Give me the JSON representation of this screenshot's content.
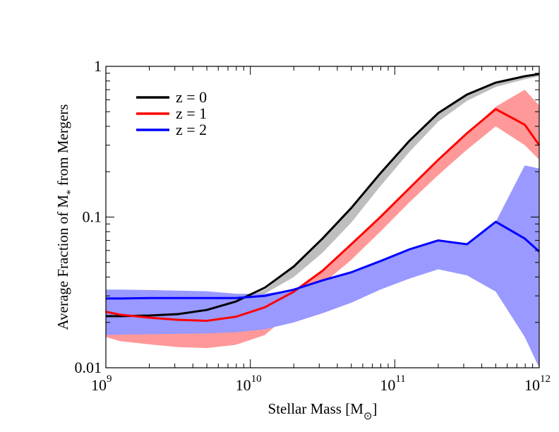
{
  "chart_data": {
    "type": "line",
    "xlabel": "Stellar Mass [M⊙]",
    "ylabel": "Average Fraction of M* from Mergers",
    "xscale": "log",
    "yscale": "log",
    "xlim": [
      1000000000.0,
      1000000000000.0
    ],
    "ylim": [
      0.01,
      1
    ],
    "x_ticks": [
      {
        "mant": "10",
        "exp": "9"
      },
      {
        "mant": "10",
        "exp": "10"
      },
      {
        "mant": "10",
        "exp": "11"
      },
      {
        "mant": "10",
        "exp": "12"
      }
    ],
    "y_ticks": [
      "0.01",
      "0.1",
      "1"
    ],
    "legend_placement": "top-left",
    "x": [
      1000000000.0,
      1260000000.0,
      2000000000.0,
      3160000000.0,
      5000000000.0,
      7940000000.0,
      12600000000.0,
      20000000000.0,
      31600000000.0,
      50000000000.0,
      79400000000.0,
      126000000000.0,
      200000000000.0,
      316000000000.0,
      500000000000.0,
      794000000000.0,
      1000000000000.0
    ],
    "series": [
      {
        "name": "z = 0",
        "color": "#000000",
        "band_color": "#bebebe",
        "values": [
          0.022,
          0.022,
          0.0222,
          0.0227,
          0.0242,
          0.0275,
          0.034,
          0.047,
          0.072,
          0.115,
          0.195,
          0.32,
          0.49,
          0.65,
          0.78,
          0.86,
          0.89
        ],
        "band_upper": [
          0.022,
          0.022,
          0.0222,
          0.0227,
          0.0242,
          0.0275,
          0.033,
          0.047,
          0.072,
          0.115,
          0.195,
          0.32,
          0.49,
          0.65,
          0.78,
          0.86,
          0.89
        ],
        "band_lower": [
          0.022,
          0.022,
          0.0222,
          0.0227,
          0.0242,
          0.0275,
          0.031,
          0.04,
          0.058,
          0.092,
          0.16,
          0.27,
          0.43,
          0.59,
          0.73,
          0.82,
          0.86
        ]
      },
      {
        "name": "z = 1",
        "color": "#ff0000",
        "band_color": "#ff9999",
        "values": [
          0.0235,
          0.0225,
          0.0215,
          0.0208,
          0.0205,
          0.0218,
          0.0252,
          0.032,
          0.044,
          0.066,
          0.1,
          0.155,
          0.24,
          0.36,
          0.52,
          0.41,
          0.3
        ],
        "band_upper": [
          0.0235,
          0.0225,
          0.0215,
          0.0208,
          0.0205,
          0.0218,
          0.0252,
          0.032,
          0.044,
          0.066,
          0.1,
          0.155,
          0.24,
          0.36,
          0.54,
          0.7,
          0.55
        ],
        "band_lower": [
          0.016,
          0.015,
          0.0143,
          0.0137,
          0.0135,
          0.0142,
          0.0165,
          0.024,
          0.036,
          0.052,
          0.08,
          0.125,
          0.19,
          0.28,
          0.4,
          0.3,
          0.24
        ]
      },
      {
        "name": "z = 2",
        "color": "#0000ff",
        "band_color": "#9999ff",
        "values": [
          0.0288,
          0.0288,
          0.029,
          0.029,
          0.029,
          0.029,
          0.03,
          0.033,
          0.038,
          0.043,
          0.051,
          0.061,
          0.07,
          0.066,
          0.093,
          0.072,
          0.059
        ],
        "band_upper": [
          0.033,
          0.033,
          0.0328,
          0.0325,
          0.0322,
          0.031,
          0.031,
          0.033,
          0.038,
          0.043,
          0.051,
          0.061,
          0.07,
          0.066,
          0.093,
          0.22,
          0.21
        ],
        "band_lower": [
          0.0165,
          0.0166,
          0.0167,
          0.0168,
          0.0169,
          0.0172,
          0.018,
          0.02,
          0.023,
          0.027,
          0.033,
          0.039,
          0.045,
          0.041,
          0.032,
          0.016,
          0.01
        ]
      }
    ]
  }
}
